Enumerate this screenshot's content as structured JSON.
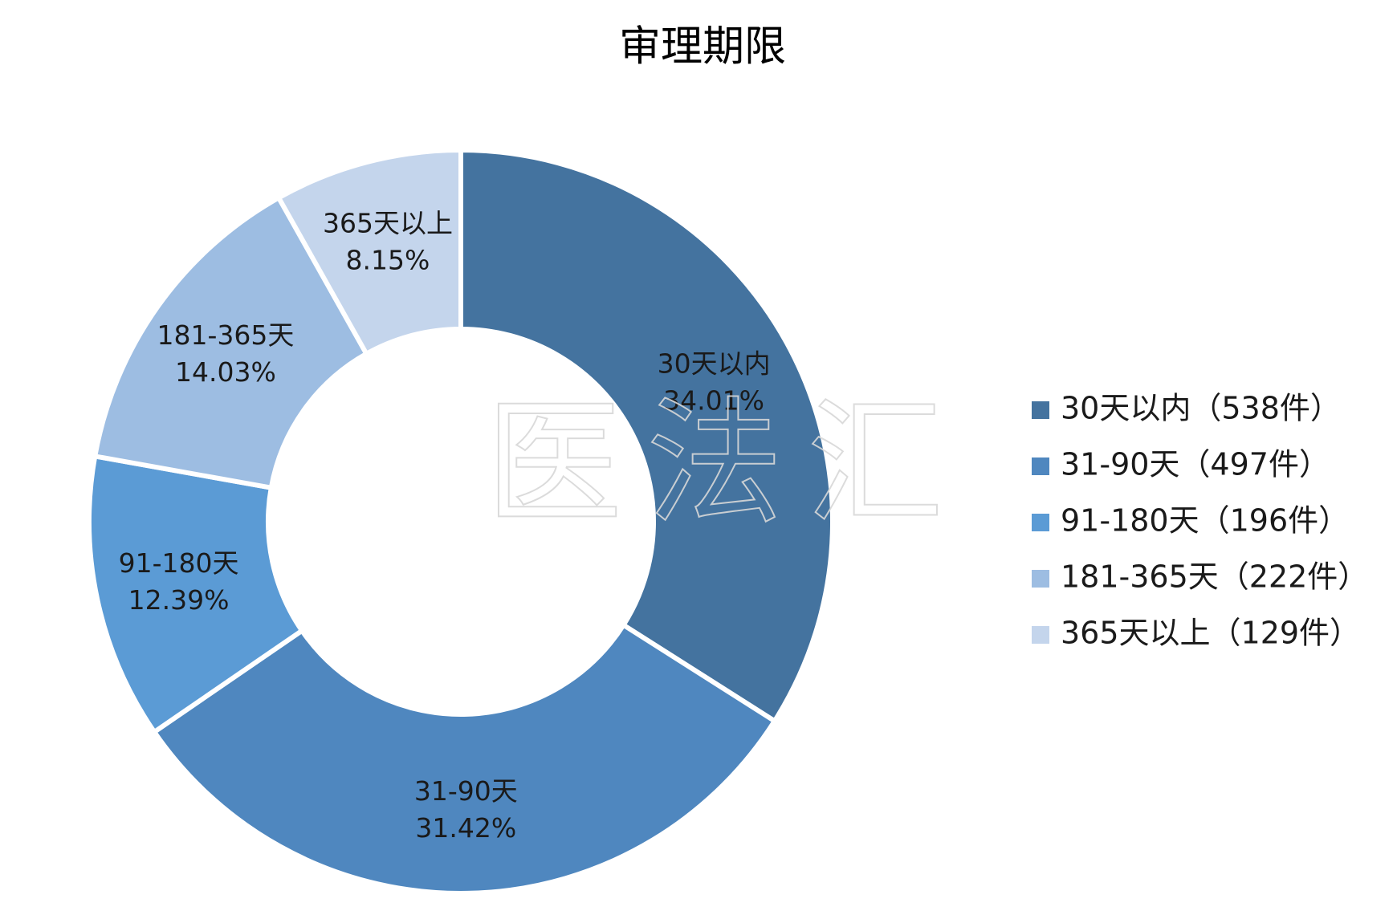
{
  "chart_data": {
    "type": "donut",
    "title": "审理期限",
    "categories": [
      "30天以内",
      "31-90天",
      "91-180天",
      "181-365天",
      "365天以上"
    ],
    "values": [
      34.01,
      31.42,
      12.39,
      14.03,
      8.15
    ],
    "value_labels": [
      "34.01%",
      "31.42%",
      "12.39%",
      "14.03%",
      "8.15%"
    ],
    "colors": [
      "#44739f",
      "#4f87bf",
      "#5b9bd5",
      "#9dbde2",
      "#c4d5ec"
    ],
    "legend_labels": [
      "30天以内（538件）",
      "31-90天（497件）",
      "91-180天（196件）",
      "181-365天（222件）",
      "365天以上（129件）"
    ],
    "legend_position": "right",
    "watermark": "医法汇"
  }
}
